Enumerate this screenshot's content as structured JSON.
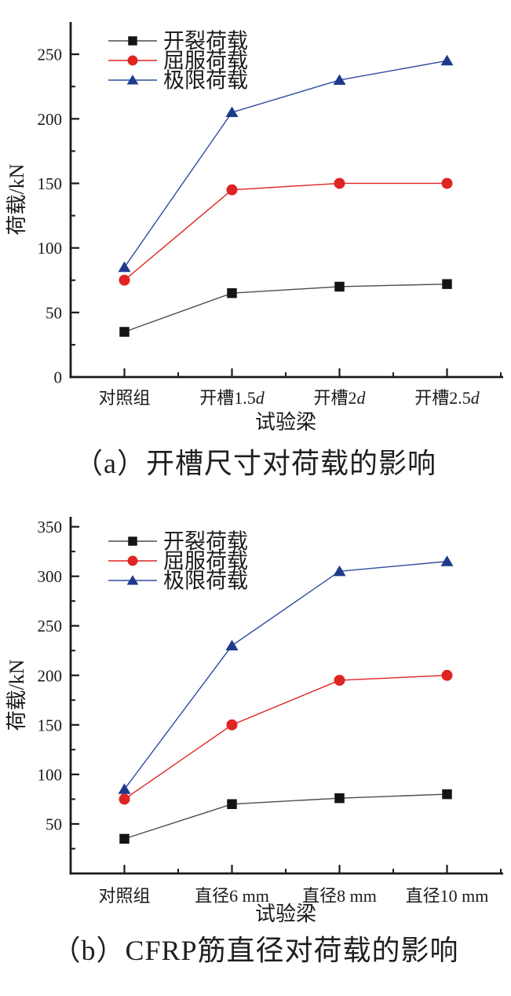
{
  "figure": {
    "background": "#ffffff",
    "text_color": "#1a1a1a"
  },
  "chart_data": [
    {
      "type": "line",
      "panel": "a",
      "caption": "（a）开槽尺寸对荷载的影响",
      "title": "",
      "xlabel": "试验梁",
      "ylabel": "荷载/kN",
      "categories": [
        "对照组",
        "开槽1.5d",
        "开槽2d",
        "开槽2.5d"
      ],
      "ylim": [
        0,
        275
      ],
      "yticks_major": [
        0,
        50,
        100,
        150,
        200,
        250
      ],
      "yminor_step": 25,
      "grid": false,
      "legend_position": "top-left-inside",
      "series": [
        {
          "key": "cracking-load",
          "name": "开裂荷载",
          "marker": "square",
          "marker_color": "#141414",
          "line_color": "#4d4d4d",
          "values": [
            35,
            65,
            70,
            72
          ]
        },
        {
          "key": "yield-load",
          "name": "屈服荷载",
          "marker": "circle",
          "marker_color": "#e02422",
          "line_color": "#e02422",
          "values": [
            75,
            145,
            150,
            150
          ]
        },
        {
          "key": "ultimate-load",
          "name": "极限荷载",
          "marker": "triangle",
          "marker_color": "#1e3a8c",
          "line_color": "#2e4d9e",
          "values": [
            85,
            205,
            230,
            245
          ]
        }
      ]
    },
    {
      "type": "line",
      "panel": "b",
      "caption": "（b）CFRP筋直径对荷载的影响",
      "title": "",
      "xlabel": "试验梁",
      "ylabel": "荷载/kN",
      "categories": [
        "对照组",
        "直径6 mm",
        "直径8 mm",
        "直径10 mm"
      ],
      "ylim": [
        0,
        360
      ],
      "yticks_major": [
        50,
        100,
        150,
        200,
        250,
        300,
        350
      ],
      "yminor_step": 25,
      "grid": false,
      "legend_position": "top-left-inside",
      "series": [
        {
          "key": "cracking-load",
          "name": "开裂荷载",
          "marker": "square",
          "marker_color": "#141414",
          "line_color": "#4d4d4d",
          "values": [
            35,
            70,
            76,
            80
          ]
        },
        {
          "key": "yield-load",
          "name": "屈服荷载",
          "marker": "circle",
          "marker_color": "#e02422",
          "line_color": "#e02422",
          "values": [
            75,
            150,
            195,
            200
          ]
        },
        {
          "key": "ultimate-load",
          "name": "极限荷载",
          "marker": "triangle",
          "marker_color": "#1e3a8c",
          "line_color": "#2e4d9e",
          "values": [
            85,
            230,
            305,
            315
          ]
        }
      ]
    }
  ]
}
